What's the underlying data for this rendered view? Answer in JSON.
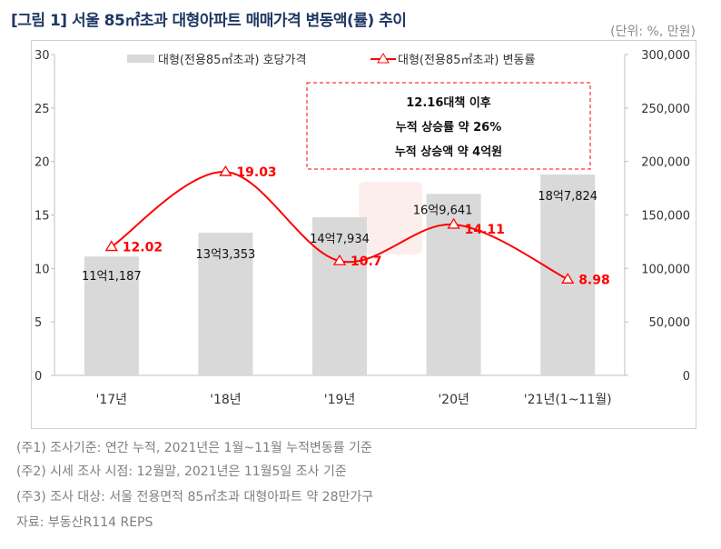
{
  "header": {
    "title": "[그림 1] 서울 85㎡초과 대형아파트 매매가격 변동액(률) 추이",
    "unit": "(단위: %, 만원)"
  },
  "watermark": "부동산R114",
  "chart_data": {
    "type": "bar+line",
    "categories": [
      "'17년",
      "'18년",
      "'19년",
      "'20년",
      "'21년(1~11월)"
    ],
    "series": [
      {
        "name": "대형(전용85㎡초과) 호당가격",
        "type": "bar",
        "axis": "right",
        "values": [
          111187,
          133353,
          147934,
          169641,
          187824
        ],
        "labels": [
          "11억1,187",
          "13억3,353",
          "14억7,934",
          "16억9,641",
          "18억7,824"
        ],
        "color": "#d9d9d9"
      },
      {
        "name": "대형(전용85㎡초과) 변동률",
        "type": "line",
        "axis": "left",
        "values": [
          12.02,
          19.03,
          10.7,
          14.11,
          8.98
        ],
        "labels": [
          "12.02",
          "19.03",
          "10.7",
          "14.11",
          "8.98"
        ],
        "color": "#ff0000",
        "marker": "triangle-open"
      }
    ],
    "left_axis": {
      "range": [
        0,
        30
      ],
      "ticks": [
        "0",
        "5",
        "10",
        "15",
        "20",
        "25",
        "30"
      ]
    },
    "right_axis": {
      "range": [
        0,
        300000
      ],
      "ticks": [
        "0",
        "50,000",
        "100,000",
        "150,000",
        "200,000",
        "250,000",
        "300,000"
      ]
    },
    "legend_position": "top",
    "grid": false,
    "annotation": [
      "12.16대책 이후",
      "누적 상승률 약 26%",
      "누적 상승액 약 4억원"
    ]
  },
  "notes": [
    "(주1) 조사기준: 연간 누적, 2021년은 1월~11월 누적변동률 기준",
    "(주2) 시세 조사 시점: 12월말, 2021년은 11월5일 조사 기준",
    "(주3) 조사 대상: 서울 전용면적 85㎡초과 대형아파트 약 28만가구",
    "자료: 부동산R114 REPS"
  ]
}
